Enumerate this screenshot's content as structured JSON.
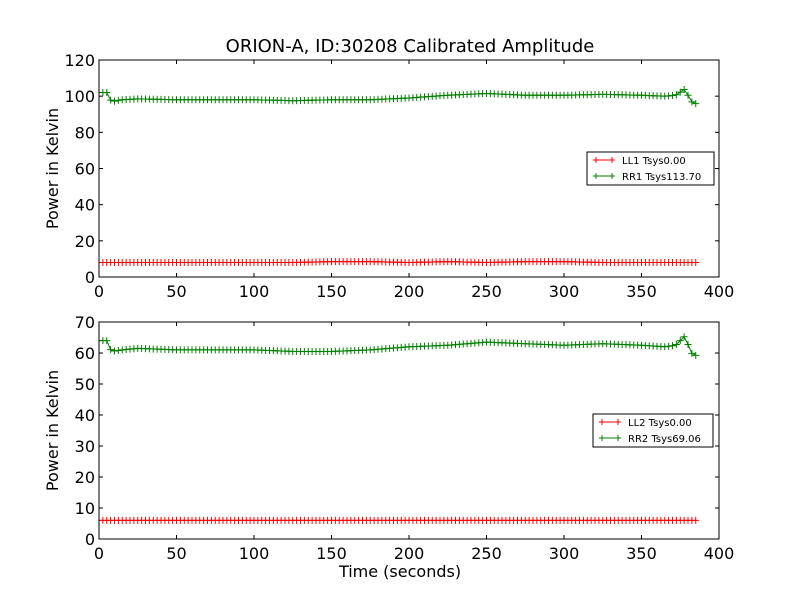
{
  "figure_title": "ORION-A, ID:30208 Calibrated Amplitude",
  "colors": {
    "ll": "#ff0000",
    "rr": "#008000",
    "axes": "#000000"
  },
  "chart_data": [
    {
      "type": "line",
      "title": "ORION-A, ID:30208 Calibrated Amplitude",
      "xlabel": "",
      "ylabel": "Power in Kelvin",
      "xlim": [
        0,
        400
      ],
      "ylim": [
        0,
        120
      ],
      "xticks": [
        0,
        50,
        100,
        150,
        200,
        250,
        300,
        350,
        400
      ],
      "yticks": [
        0,
        20,
        40,
        60,
        80,
        100,
        120
      ],
      "legend": "center-right",
      "marker": "plus",
      "series": [
        {
          "name": "LL1 Tsys0.00",
          "color": "#ff0000",
          "x": [
            0,
            25,
            50,
            75,
            100,
            125,
            150,
            175,
            200,
            225,
            250,
            275,
            300,
            325,
            350,
            375,
            385
          ],
          "y": [
            8,
            8,
            8,
            8,
            8,
            8,
            8.5,
            8.5,
            8,
            8.5,
            8,
            8.5,
            8.5,
            8,
            8,
            8,
            8
          ]
        },
        {
          "name": "RR1 Tsys113.70",
          "color": "#008000",
          "x": [
            0,
            5,
            8,
            15,
            25,
            50,
            75,
            100,
            125,
            150,
            175,
            200,
            225,
            250,
            275,
            300,
            325,
            350,
            365,
            372,
            378,
            382,
            386
          ],
          "y": [
            102,
            102,
            97,
            98,
            98.5,
            98,
            98,
            98,
            97.5,
            98,
            98,
            99,
            100.5,
            101.5,
            100.5,
            100.5,
            101,
            100.5,
            100,
            100.5,
            104,
            97,
            95.5
          ]
        }
      ]
    },
    {
      "type": "line",
      "title": "",
      "xlabel": "Time (seconds)",
      "ylabel": "Power in Kelvin",
      "xlim": [
        0,
        400
      ],
      "ylim": [
        0,
        70
      ],
      "xticks": [
        0,
        50,
        100,
        150,
        200,
        250,
        300,
        350,
        400
      ],
      "yticks": [
        0,
        10,
        20,
        30,
        40,
        50,
        60,
        70
      ],
      "legend": "center-right",
      "marker": "plus",
      "series": [
        {
          "name": "LL2 Tsys0.00",
          "color": "#ff0000",
          "x": [
            0,
            50,
            100,
            150,
            200,
            250,
            300,
            350,
            385
          ],
          "y": [
            6,
            6,
            6,
            6,
            6,
            6,
            6,
            6,
            6
          ]
        },
        {
          "name": "RR2 Tsys69.06",
          "color": "#008000",
          "x": [
            0,
            5,
            8,
            15,
            25,
            50,
            75,
            100,
            125,
            150,
            175,
            200,
            225,
            250,
            275,
            300,
            325,
            350,
            365,
            372,
            378,
            382,
            386
          ],
          "y": [
            64,
            64,
            60.5,
            61,
            61.5,
            61,
            61,
            61,
            60.5,
            60.5,
            61,
            62,
            62.5,
            63.5,
            63,
            62.5,
            63,
            62.5,
            62,
            62.5,
            65.5,
            60,
            59
          ]
        }
      ]
    }
  ]
}
